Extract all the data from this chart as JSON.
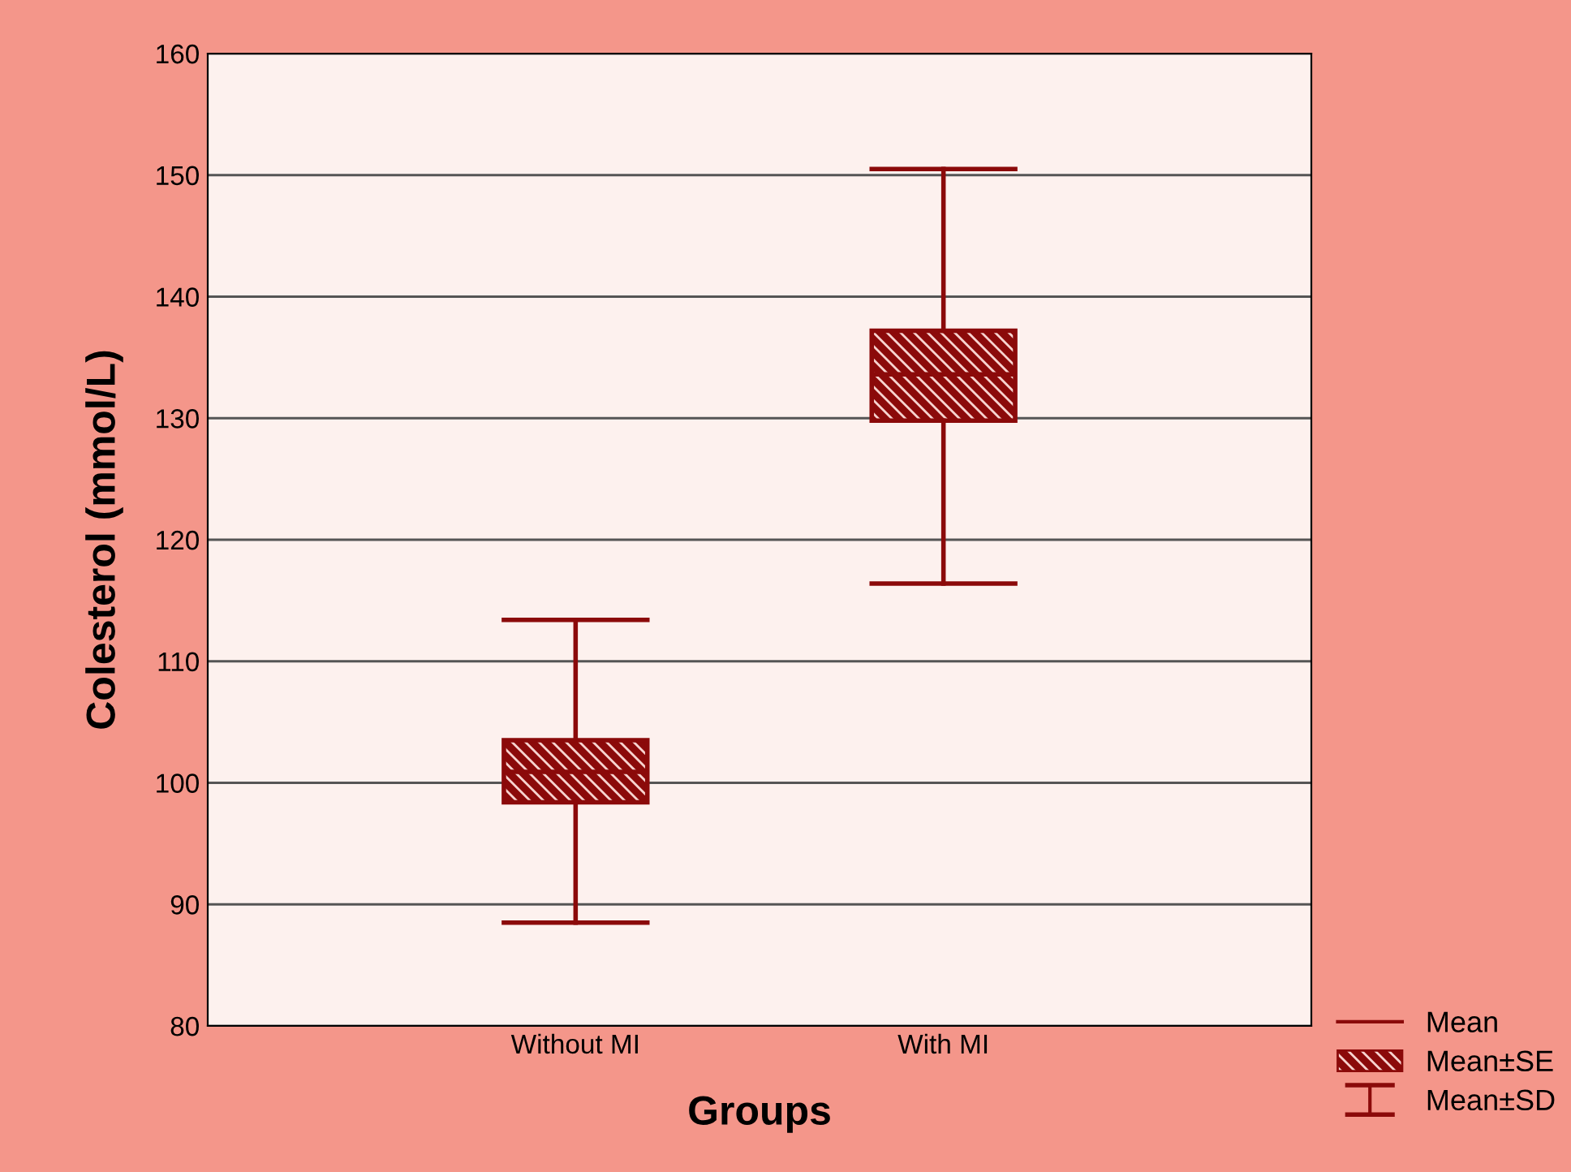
{
  "chart_data": {
    "type": "box",
    "xlabel": "Groups",
    "ylabel": "Colesterol (mmol/L)",
    "categories": [
      "Without MI",
      "With MI"
    ],
    "boxes": [
      {
        "low": 88.5,
        "q1": 98.4,
        "median": 100.9,
        "q3": 103.5,
        "high": 113.4
      },
      {
        "low": 116.4,
        "q1": 129.8,
        "median": 133.6,
        "q3": 137.2,
        "high": 150.5
      }
    ],
    "color": "#8b0a0a",
    "ylim": [
      80,
      160
    ],
    "yticks": [
      80,
      90,
      100,
      110,
      120,
      130,
      140,
      150,
      160
    ],
    "grid": "y",
    "annotations": [
      "Mean",
      "Mean±SE",
      "Mean±SD"
    ]
  }
}
